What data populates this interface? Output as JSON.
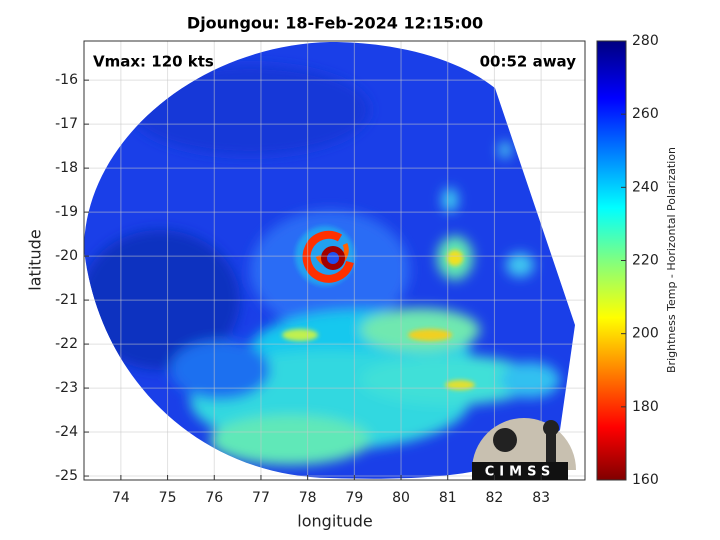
{
  "chart_data": {
    "type": "image",
    "title": "Djoungou: 18-Feb-2024 12:15:00",
    "xlabel": "longitude",
    "ylabel": "latitude",
    "xlim": [
      73.21,
      83.94
    ],
    "xticks": [
      74,
      75,
      76,
      77,
      78,
      79,
      80,
      81,
      82,
      83
    ],
    "ylim": [
      -25.09,
      -15.11
    ],
    "yticks": [
      -25,
      -24,
      -23,
      -22,
      -21,
      -20,
      -19,
      -18,
      -17,
      -16
    ],
    "grid": true,
    "annotations": [
      "Vmax: 120 kts",
      "00:52 away"
    ],
    "colorbar": {
      "label": "Brightness Temp - Horizontal Polarization",
      "clim": [
        160,
        280
      ],
      "ticks": [
        160,
        180,
        200,
        220,
        240,
        260,
        280
      ]
    }
  },
  "logo": {
    "text": "CIMSS"
  }
}
